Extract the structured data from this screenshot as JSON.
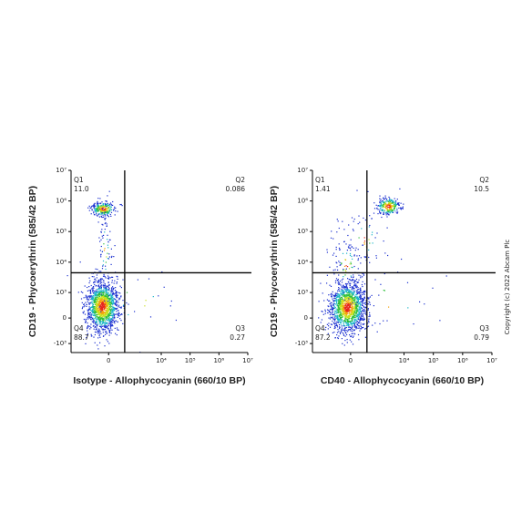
{
  "chart_data": [
    {
      "type": "flow-density",
      "scale": "biexponential",
      "xlabel": "Isotype - Allophycocyanin (660/10 BP)",
      "ylabel": "CD19 - Phycoerythrin (585/42 BP)",
      "xlim": [
        -3000,
        10000000
      ],
      "ylim": [
        -2000,
        10000000
      ],
      "xticks": [
        0,
        {
          "value": 10000,
          "label": "10⁴"
        },
        {
          "value": 100000,
          "label": "10⁵"
        },
        {
          "value": 1000000,
          "label": "10⁶"
        },
        {
          "value": 10000000,
          "label": "10⁷"
        }
      ],
      "yticks": [
        {
          "value": -1000,
          "label": "-10³"
        },
        0,
        {
          "value": 1000,
          "label": "10³"
        },
        {
          "value": 10000,
          "label": "10⁴"
        },
        {
          "value": 100000,
          "label": "10⁵"
        },
        {
          "value": 1000000,
          "label": "10⁶"
        },
        {
          "value": 10000000,
          "label": "10⁷"
        }
      ],
      "gate": {
        "x": 500,
        "y": 4500
      },
      "quadrants": [
        "Q1",
        "Q2",
        "Q3",
        "Q4"
      ],
      "values": [
        11.0,
        0.086,
        0.27,
        88.7
      ],
      "value_labels": [
        "11.0",
        "0.086",
        "0.27",
        "88.7"
      ]
    },
    {
      "type": "flow-density",
      "scale": "biexponential",
      "xlabel": "CD40 - Allophycocyanin (660/10 BP)",
      "ylabel": "CD19 - Phycoerythrin (585/42 BP)",
      "xlim": [
        -3000,
        10000000
      ],
      "ylim": [
        -2000,
        10000000
      ],
      "xticks": [
        0,
        {
          "value": 10000,
          "label": "10⁴"
        },
        {
          "value": 100000,
          "label": "10⁵"
        },
        {
          "value": 1000000,
          "label": "10⁶"
        },
        {
          "value": 10000000,
          "label": "10⁷"
        }
      ],
      "yticks": [
        {
          "value": -1000,
          "label": "-10³"
        },
        0,
        {
          "value": 1000,
          "label": "10³"
        },
        {
          "value": 10000,
          "label": "10⁴"
        },
        {
          "value": 100000,
          "label": "10⁵"
        },
        {
          "value": 1000000,
          "label": "10⁶"
        },
        {
          "value": 10000000,
          "label": "10⁷"
        }
      ],
      "gate": {
        "x": 500,
        "y": 4500
      },
      "quadrants": [
        "Q1",
        "Q2",
        "Q3",
        "Q4"
      ],
      "values": [
        1.41,
        10.5,
        0.79,
        87.2
      ],
      "value_labels": [
        "1.41",
        "10.5",
        "0.79",
        "87.2"
      ]
    }
  ],
  "copyright": "Copyright (c) 2022 Abcam Plc"
}
